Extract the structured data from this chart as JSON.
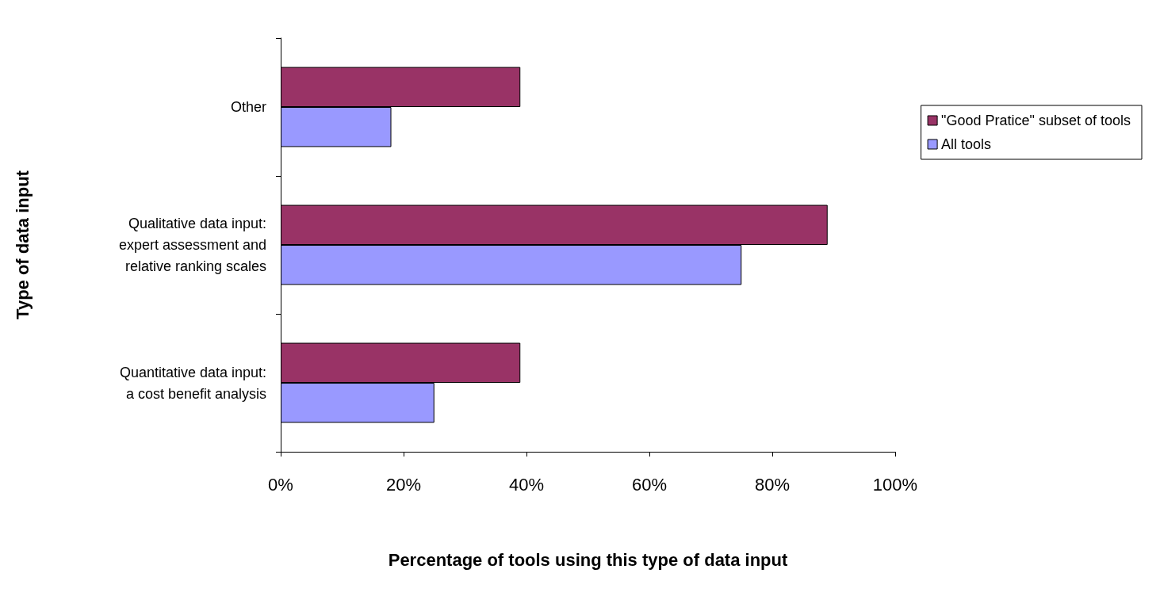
{
  "chart_data": {
    "type": "bar",
    "orientation": "horizontal",
    "xlabel": "Percentage of tools using this type of data input",
    "ylabel": "Type of data input",
    "categories": [
      "Other",
      "Qualitative data input:\nexpert assessment and\nrelative ranking scales",
      "Quantitative data input:\na cost benefit analysis"
    ],
    "series": [
      {
        "name": "\"Good Pratice\" subset of tools",
        "color": "#993366",
        "values": [
          39,
          89,
          39
        ]
      },
      {
        "name": "All tools",
        "color": "#9999ff",
        "values": [
          18,
          75,
          25
        ]
      }
    ],
    "xlim": [
      0,
      100
    ],
    "xticks": [
      {
        "value": 0,
        "label": "0%"
      },
      {
        "value": 20,
        "label": "20%"
      },
      {
        "value": 40,
        "label": "40%"
      },
      {
        "value": 60,
        "label": "60%"
      },
      {
        "value": 80,
        "label": "80%"
      },
      {
        "value": 100,
        "label": "100%"
      }
    ],
    "grid": false,
    "legend": "top right"
  }
}
